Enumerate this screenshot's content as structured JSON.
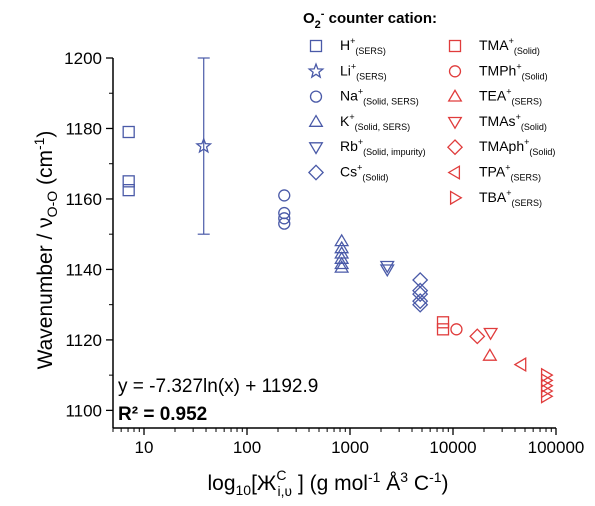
{
  "chart_data": {
    "type": "scatter",
    "x_scale": "log",
    "xlim": [
      5,
      100000
    ],
    "ylim": [
      1095,
      1200
    ],
    "grid": false,
    "y_axis_label": {
      "main": "Wavenumber / ν",
      "sub": "O-O",
      "tail": " (cm",
      "sup": "-1",
      "end": ")"
    },
    "x_axis_label": {
      "main": "log",
      "sub1": "10",
      "bracket": "[Ж",
      "sup": "C",
      "sub2": "i,ʋ",
      "tail": " ] (g mol",
      "sup2": "-1",
      "mid": " Å",
      "sup3": "3",
      "end": " C",
      "sup4": "-1",
      "close": ")"
    },
    "x_ticks": [
      10,
      100,
      1000,
      10000,
      100000
    ],
    "x_tick_labels": [
      "10",
      "100",
      "1000",
      "10000",
      "100000"
    ],
    "y_ticks": [
      1100,
      1120,
      1140,
      1160,
      1180,
      1200
    ],
    "y_tick_labels": [
      "1100",
      "1120",
      "1140",
      "1160",
      "1180",
      "1200"
    ],
    "legend": {
      "title": {
        "main": "O",
        "sub": "2",
        "sup": "-",
        "tail": " counter cation:"
      },
      "placement": "top-right",
      "entries": [
        {
          "ion": "H",
          "charge": "+",
          "note": "(SERS)",
          "marker": "square",
          "color": "#4a5aa8",
          "col": 0
        },
        {
          "ion": "Li",
          "charge": "+",
          "note": "(SERS)",
          "marker": "star",
          "color": "#4a5aa8",
          "col": 0
        },
        {
          "ion": "Na",
          "charge": "+",
          "note": "(Solid, SERS)",
          "marker": "circle",
          "color": "#4a5aa8",
          "col": 0
        },
        {
          "ion": "K",
          "charge": "+",
          "note": "(Solid, SERS)",
          "marker": "triangle-up",
          "color": "#4a5aa8",
          "col": 0
        },
        {
          "ion": "Rb",
          "charge": "+",
          "note": "(Solid, impurity)",
          "marker": "triangle-down",
          "color": "#4a5aa8",
          "col": 0
        },
        {
          "ion": "Cs",
          "charge": "+",
          "note": "(Solid)",
          "marker": "diamond",
          "color": "#4a5aa8",
          "col": 0
        },
        {
          "ion": "TMA",
          "charge": "+",
          "note": "(Solid)",
          "marker": "square",
          "color": "#e03c3c",
          "col": 1
        },
        {
          "ion": "TMPh",
          "charge": "+",
          "note": "(Solid)",
          "marker": "circle",
          "color": "#e03c3c",
          "col": 1
        },
        {
          "ion": "TEA",
          "charge": "+",
          "note": "(SERS)",
          "marker": "triangle-up",
          "color": "#e03c3c",
          "col": 1
        },
        {
          "ion": "TMAs",
          "charge": "+",
          "note": "(Solid)",
          "marker": "triangle-down",
          "color": "#e03c3c",
          "col": 1
        },
        {
          "ion": "TMAph",
          "charge": "+",
          "note": "(Solid)",
          "marker": "diamond",
          "color": "#e03c3c",
          "col": 1
        },
        {
          "ion": "TPA",
          "charge": "+",
          "note": "(SERS)",
          "marker": "triangle-left",
          "color": "#e03c3c",
          "col": 1
        },
        {
          "ion": "TBA",
          "charge": "+",
          "note": "(SERS)",
          "marker": "triangle-right",
          "color": "#e03c3c",
          "col": 1
        }
      ]
    },
    "annotations": {
      "fit_equation": "y = -7.327ln(x) + 1192.9",
      "r_squared": "R² = 0.952"
    },
    "series": [
      {
        "name": "H⁺",
        "marker": "square",
        "color": "#4a5aa8",
        "points": [
          [
            7.1,
            1179
          ],
          [
            7.1,
            1165
          ],
          [
            7.1,
            1162.5
          ]
        ]
      },
      {
        "name": "Li⁺",
        "marker": "star",
        "color": "#4a5aa8",
        "points": [
          [
            38,
            1175
          ]
        ],
        "error_bar": [
          1150,
          1200
        ]
      },
      {
        "name": "Na⁺",
        "marker": "circle",
        "color": "#4a5aa8",
        "points": [
          [
            230,
            1161
          ],
          [
            230,
            1156
          ],
          [
            230,
            1154.5
          ],
          [
            230,
            1153
          ]
        ]
      },
      {
        "name": "K⁺",
        "marker": "triangle-up",
        "color": "#4a5aa8",
        "points": [
          [
            830,
            1148
          ],
          [
            830,
            1146
          ],
          [
            830,
            1144.5
          ],
          [
            830,
            1143
          ],
          [
            830,
            1141.5
          ],
          [
            830,
            1140.5
          ]
        ]
      },
      {
        "name": "Rb⁺",
        "marker": "triangle-down",
        "color": "#4a5aa8",
        "points": [
          [
            2300,
            1141
          ],
          [
            2300,
            1140
          ]
        ]
      },
      {
        "name": "Cs⁺",
        "marker": "diamond",
        "color": "#4a5aa8",
        "points": [
          [
            4800,
            1137
          ],
          [
            4800,
            1134
          ],
          [
            4800,
            1133
          ],
          [
            4800,
            1131
          ],
          [
            4800,
            1130
          ]
        ]
      },
      {
        "name": "TMA⁺",
        "marker": "square",
        "color": "#e03c3c",
        "points": [
          [
            8000,
            1125
          ],
          [
            8000,
            1123
          ]
        ]
      },
      {
        "name": "TMPh⁺",
        "marker": "circle",
        "color": "#e03c3c",
        "points": [
          [
            10800,
            1123
          ]
        ]
      },
      {
        "name": "TEA⁺",
        "marker": "triangle-up",
        "color": "#e03c3c",
        "points": [
          [
            22800,
            1115.5
          ]
        ]
      },
      {
        "name": "TMAs⁺",
        "marker": "triangle-down",
        "color": "#e03c3c",
        "points": [
          [
            23200,
            1122
          ]
        ]
      },
      {
        "name": "TMAph⁺",
        "marker": "diamond",
        "color": "#e03c3c",
        "points": [
          [
            17200,
            1121
          ]
        ]
      },
      {
        "name": "TPA⁺",
        "marker": "triangle-left",
        "color": "#e03c3c",
        "points": [
          [
            46000,
            1113
          ]
        ]
      },
      {
        "name": "TBA⁺",
        "marker": "triangle-right",
        "color": "#e03c3c",
        "points": [
          [
            80000,
            1110
          ],
          [
            80000,
            1108.5
          ],
          [
            80000,
            1107
          ],
          [
            80000,
            1105.5
          ],
          [
            80000,
            1104
          ]
        ]
      }
    ]
  }
}
